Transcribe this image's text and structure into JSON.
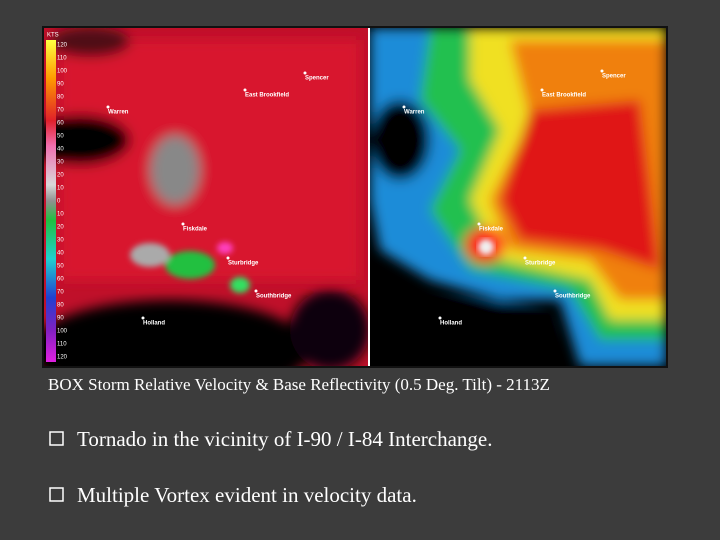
{
  "figure": {
    "legend": {
      "unit": "KTS",
      "labels": [
        "120",
        "110",
        "100",
        "90",
        "80",
        "70",
        "60",
        "50",
        "40",
        "30",
        "20",
        "10",
        "0",
        "10",
        "20",
        "30",
        "40",
        "50",
        "60",
        "70",
        "80",
        "90",
        "100",
        "110",
        "120"
      ]
    },
    "left_panel": {
      "towns": [
        "Spencer",
        "East Brookfield",
        "Warren",
        "Fiskdale",
        "Sturbridge",
        "Southbridge",
        "Holland"
      ]
    },
    "right_panel": {
      "towns": [
        "Spencer",
        "East Brookfield",
        "Warren",
        "Fiskdale",
        "Sturbridge",
        "Southbridge",
        "Holland"
      ]
    },
    "caption": "BOX Storm Relative Velocity & Base Reflectivity (0.5 Deg. Tilt) - 2113Z"
  },
  "bullets": [
    "Tornado in the vicinity of I-90 / I-84 Interchange.",
    "Multiple Vortex evident in velocity data."
  ]
}
